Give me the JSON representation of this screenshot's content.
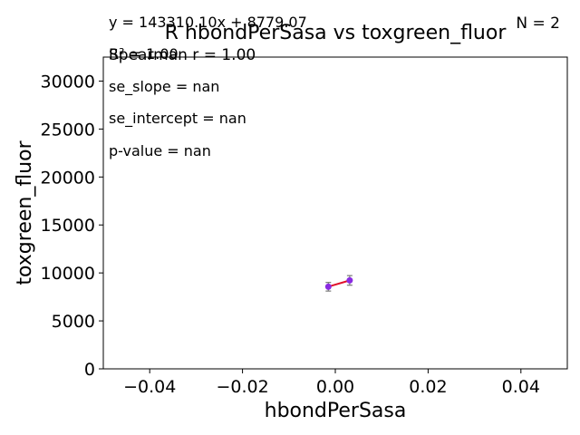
{
  "chart_data": {
    "type": "scatter",
    "title": "R hbondPerSasa vs toxgreen_fluor",
    "xlabel": "hbondPerSasa",
    "ylabel": "toxgreen_fluor",
    "xlim": [
      -0.05,
      0.05
    ],
    "ylim": [
      0,
      32500
    ],
    "xticks": [
      -0.04,
      -0.02,
      0.0,
      0.02,
      0.04
    ],
    "xtick_labels": [
      "−0.04",
      "−0.02",
      "0.00",
      "0.02",
      "0.04"
    ],
    "yticks": [
      0,
      5000,
      10000,
      15000,
      20000,
      25000,
      30000
    ],
    "ytick_labels": [
      "0",
      "5000",
      "10000",
      "15000",
      "20000",
      "25000",
      "30000"
    ],
    "grid": false,
    "points": [
      {
        "x": -0.0015,
        "y": 8560,
        "yerr": 450
      },
      {
        "x": 0.0031,
        "y": 9220,
        "yerr": 500
      }
    ],
    "fit_line": {
      "slope": 143310.1,
      "intercept": 8779.07,
      "x_range": [
        -0.0015,
        0.0031
      ]
    },
    "annotations": {
      "equation": "y = 143310.10x + 8779.07",
      "n": "N = 2",
      "r2": "R² = 1.00",
      "spearman": "Spearman r = 1.00",
      "se_slope": "se_slope = nan",
      "se_intercept": "se_intercept = nan",
      "p_value": "p-value = nan"
    },
    "colors": {
      "point": "#8a2be2",
      "fit_line": "#e0102a",
      "errorbar": "#7a7a7a",
      "axes": "#000000"
    }
  }
}
